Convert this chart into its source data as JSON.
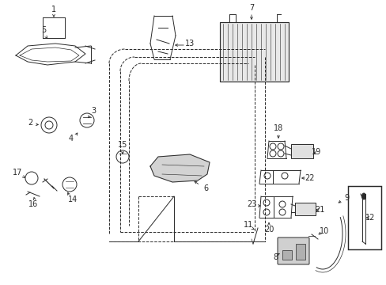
{
  "bg_color": "#ffffff",
  "line_color": "#2a2a2a",
  "fig_width": 4.89,
  "fig_height": 3.6,
  "dpi": 100,
  "label_fs": 7,
  "lw": 0.7
}
